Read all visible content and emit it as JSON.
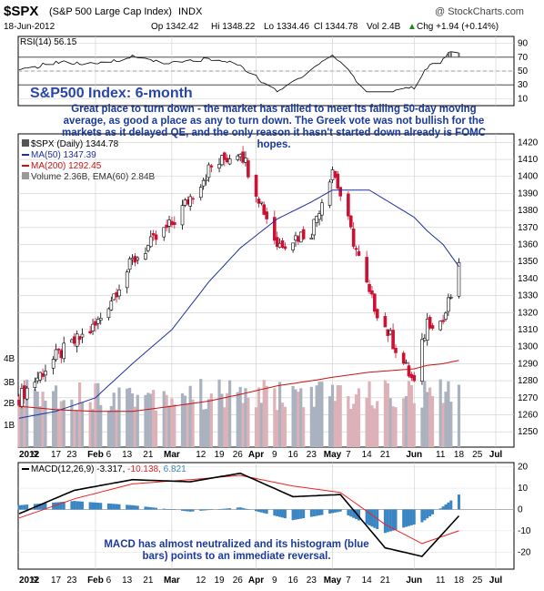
{
  "header": {
    "symbol": "$SPX",
    "name": "(S&P 500 Large Cap Index)",
    "exchange": "INDX",
    "source": "@ StockCharts.com",
    "date": "18-Jun-2012",
    "open": "Op 1342.42",
    "high": "Hi 1348.22",
    "low": "Lo 1334.46",
    "close": "Cl 1344.78",
    "volume": "Vol 2.4B",
    "change": "Chg +1.94 (+0.14%)",
    "change_arrow": "▲"
  },
  "rsi_panel": {
    "label": "RSI(14) 56.15",
    "ticks": [
      "90",
      "70",
      "50",
      "30",
      "10"
    ]
  },
  "annotation": {
    "title": "S&P500 Index: 6-month",
    "text": "Great place to turn down - the market has rallied to meet its falling 50-day moving average, as good a place as any to turn down. The Greek vote was not bullish for the markets as it delayed QE, and the only reason it hasn't started down already is FOMC hopes."
  },
  "price_panel": {
    "legend_price": "$SPX (Daily) 1344.78",
    "legend_ma50": "MA(50) 1347.39",
    "legend_ma200": "MA(200) 1292.45",
    "legend_volume": "Volume 2.36B, EMA(60) 2.84B",
    "price_ticks": [
      "1420",
      "1410",
      "1400",
      "1390",
      "1380",
      "1370",
      "1360",
      "1350",
      "1340",
      "1330",
      "1320",
      "1310",
      "1300",
      "1290",
      "1280",
      "1270",
      "1260",
      "1250"
    ],
    "volume_ticks": [
      "4B",
      "3B",
      "2B",
      "1B"
    ]
  },
  "x_axis": {
    "labels": [
      "2012",
      "9",
      "17",
      "23",
      "Feb",
      "6",
      "13",
      "21",
      "Mar",
      "12",
      "19",
      "26",
      "Apr",
      "9",
      "16",
      "23",
      "May",
      "7",
      "14",
      "21",
      "Jun",
      "11",
      "18",
      "25",
      "Jul"
    ]
  },
  "macd_panel": {
    "label_main": "MACD(12,26,9)",
    "label_macd": "-3.317,",
    "label_signal": "-10.138,",
    "label_hist": "6.821",
    "ticks": [
      "20",
      "10",
      "0",
      "-10",
      "-20"
    ],
    "note": "MACD has almost neutralized and its histogram (blue bars) points to an immediate reversal."
  },
  "colors": {
    "candle_up": "#000000",
    "candle_down": "#cc1133",
    "ma50": "#1f2fa0",
    "ma200": "#cc1111",
    "volume_up": "#aab2c0",
    "volume_down": "#dcb1b8",
    "rsi_fill": "#666666",
    "macd_line": "#000000",
    "signal_line": "#ee2222",
    "histogram": "#3a86c4",
    "note_text": "#1a3a9c"
  },
  "chart_data": {
    "type": "line",
    "title": "$SPX (S&P 500 Large Cap Index) INDX",
    "period": "Daily, 2012-01 to 2012-06-18",
    "x_approx": [
      "2012-01-03",
      "2012-01-17",
      "2012-02-01",
      "2012-02-15",
      "2012-03-01",
      "2012-03-15",
      "2012-03-27",
      "2012-04-10",
      "2012-04-23",
      "2012-05-01",
      "2012-05-15",
      "2012-06-01",
      "2012-06-06",
      "2012-06-12",
      "2012-06-18"
    ],
    "series": [
      {
        "name": "$SPX",
        "values": [
          1270,
          1294,
          1312,
          1350,
          1372,
          1404,
          1416,
          1360,
          1368,
          1405,
          1330,
          1278,
          1315,
          1315,
          1345
        ]
      },
      {
        "name": "MA(50)",
        "values": [
          1258,
          1262,
          1270,
          1290,
          1310,
          1338,
          1358,
          1375,
          1385,
          1392,
          1392,
          1376,
          1368,
          1360,
          1347
        ]
      },
      {
        "name": "MA(200)",
        "values": [
          1265,
          1263,
          1262,
          1262,
          1265,
          1268,
          1272,
          1277,
          1280,
          1282,
          1285,
          1287,
          1289,
          1290,
          1292
        ]
      }
    ],
    "ylim": [
      1241,
      1425
    ],
    "last_close": 1344.78,
    "rsi": {
      "name": "RSI(14)",
      "last": 56.15,
      "ylim": [
        0,
        100
      ],
      "levels": [
        70,
        30
      ]
    },
    "volume": {
      "last": "2.36B",
      "ema60": "2.84B"
    },
    "macd": {
      "name": "MACD(12,26,9)",
      "macd": -3.317,
      "signal": -10.138,
      "histogram": 6.821,
      "ylim": [
        -28,
        22
      ],
      "x_approx": [
        "2012-01-03",
        "2012-01-24",
        "2012-02-15",
        "2012-03-08",
        "2012-03-27",
        "2012-04-16",
        "2012-05-04",
        "2012-05-21",
        "2012-06-04",
        "2012-06-18"
      ],
      "macd_values": [
        -2,
        9,
        14,
        13,
        17,
        6,
        7,
        -18,
        -22,
        -3
      ],
      "signal_values": [
        -4,
        5,
        12,
        14,
        16,
        11,
        8,
        -7,
        -16,
        -10
      ]
    }
  }
}
